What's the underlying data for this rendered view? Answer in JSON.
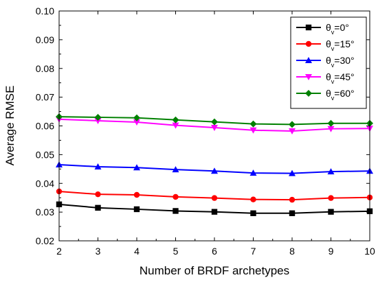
{
  "chart_data": {
    "type": "line",
    "title": "",
    "xlabel": "Number of BRDF archetypes",
    "ylabel": "Average RMSE",
    "xlim": [
      2,
      10
    ],
    "ylim": [
      0.02,
      0.1
    ],
    "xticks": [
      2,
      3,
      4,
      5,
      6,
      7,
      8,
      9,
      10
    ],
    "yticks": [
      "0.02",
      "0.03",
      "0.04",
      "0.05",
      "0.06",
      "0.07",
      "0.08",
      "0.09",
      "0.10"
    ],
    "grid": false,
    "legend_position": "top-right",
    "x": [
      2,
      3,
      4,
      5,
      6,
      7,
      8,
      9,
      10
    ],
    "series": [
      {
        "legend_prefix": "θ",
        "legend_sub": "v",
        "legend_value": "=0°",
        "color": "#000000",
        "marker": "square",
        "values": [
          0.0327,
          0.0315,
          0.031,
          0.0304,
          0.0301,
          0.0296,
          0.0296,
          0.0301,
          0.0303
        ]
      },
      {
        "legend_prefix": "θ",
        "legend_sub": "v",
        "legend_value": "=15°",
        "color": "#ff0000",
        "marker": "circle",
        "values": [
          0.0372,
          0.0362,
          0.036,
          0.0353,
          0.0349,
          0.0344,
          0.0343,
          0.0349,
          0.0351
        ]
      },
      {
        "legend_prefix": "θ",
        "legend_sub": "v",
        "legend_value": "=30°",
        "color": "#0000ff",
        "marker": "triangle-up",
        "values": [
          0.0465,
          0.0458,
          0.0455,
          0.0448,
          0.0443,
          0.0436,
          0.0435,
          0.0441,
          0.0443
        ]
      },
      {
        "legend_prefix": "θ",
        "legend_sub": "v",
        "legend_value": "=45°",
        "color": "#ff00ff",
        "marker": "triangle-down",
        "values": [
          0.0623,
          0.0618,
          0.0613,
          0.0602,
          0.0594,
          0.0585,
          0.0582,
          0.059,
          0.0591
        ]
      },
      {
        "legend_prefix": "θ",
        "legend_sub": "v",
        "legend_value": "=60°",
        "color": "#008000",
        "marker": "diamond",
        "values": [
          0.0632,
          0.063,
          0.0628,
          0.0621,
          0.0614,
          0.0607,
          0.0605,
          0.0609,
          0.0609
        ]
      }
    ]
  }
}
